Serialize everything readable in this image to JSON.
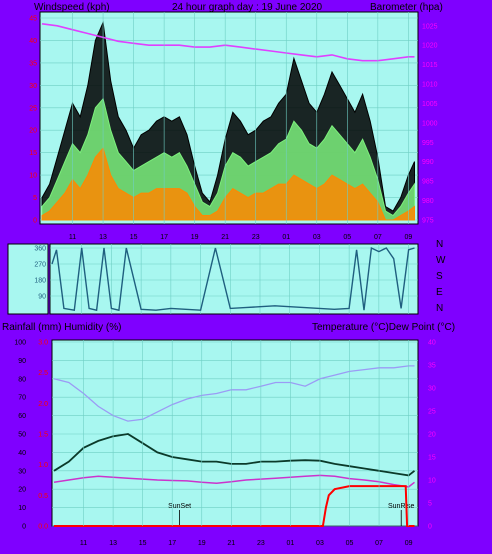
{
  "colors": {
    "background": "#7f00ff",
    "plot_bg": "#a8f7f0",
    "grid": "#6fcfc4",
    "wind_gust": "#000000",
    "wind_avg": "#7cf07c",
    "wind_low": "#ff8800",
    "barometer": "#e040ff",
    "direction": "#1f5f7f",
    "humidity": "#9b9bf5",
    "temperature": "#0b3a2a",
    "dew_point": "#cc33cc",
    "rainfall": "#ff0000",
    "left_ticks": "#ff0000",
    "right_ticks": "#ff00ff"
  },
  "header": {
    "left": "Windspeed (kph)",
    "center": "24 hour graph day : 19 June 2020",
    "right": "Barometer (hpa)"
  },
  "middle_header": {
    "left": "Rainfall (mm)  Humidity (%)",
    "right": "Temperature (°C)Dew Point (°C)"
  },
  "time_labels": [
    "11",
    "13",
    "15",
    "17",
    "19",
    "21",
    "23",
    "01",
    "03",
    "05",
    "07",
    "09"
  ],
  "direction_labels": [
    "N",
    "W",
    "S",
    "E",
    "N"
  ],
  "chart_data": [
    {
      "type": "line",
      "name": "wind-barometer",
      "left_axis_ticks": [
        "0",
        "5",
        "10",
        "15",
        "20",
        "25",
        "30",
        "35",
        "40",
        "45"
      ],
      "right_axis_ticks": [
        "975",
        "980",
        "985",
        "990",
        "995",
        "1000",
        "1005",
        "1010",
        "1015",
        "1020",
        "1025"
      ],
      "ylim_left": [
        0,
        45
      ],
      "ylim_right": [
        975,
        1027
      ],
      "x_hours_range": [
        9,
        33.5
      ],
      "series": [
        {
          "key": "gust",
          "x": [
            9,
            9.5,
            10,
            10.5,
            11,
            11.5,
            12,
            12.5,
            13,
            13.5,
            14,
            14.5,
            15,
            15.5,
            16,
            16.5,
            17,
            17.5,
            18,
            18.5,
            19,
            19.5,
            20,
            20.5,
            21,
            21.5,
            22,
            22.5,
            23,
            23.5,
            24,
            24.5,
            25,
            25.5,
            26,
            26.5,
            27,
            27.5,
            28,
            28.5,
            29,
            29.5,
            30,
            30.5,
            31,
            31.5,
            32,
            32.5,
            33,
            33.4
          ],
          "values": [
            5,
            8,
            14,
            20,
            26,
            23,
            30,
            40,
            44,
            31,
            23,
            20,
            16,
            19,
            20,
            22,
            23,
            22,
            23,
            19,
            12,
            6,
            4,
            10,
            18,
            24,
            22,
            19,
            20,
            22,
            23,
            26,
            28,
            36,
            31,
            26,
            24,
            28,
            33,
            30,
            27,
            24,
            28,
            22,
            14,
            3,
            2,
            5,
            10,
            13
          ]
        },
        {
          "key": "average",
          "x": [
            9,
            9.5,
            10,
            10.5,
            11,
            11.5,
            12,
            12.5,
            13,
            13.5,
            14,
            14.5,
            15,
            15.5,
            16,
            16.5,
            17,
            17.5,
            18,
            18.5,
            19,
            19.5,
            20,
            20.5,
            21,
            21.5,
            22,
            22.5,
            23,
            23.5,
            24,
            24.5,
            25,
            25.5,
            26,
            26.5,
            27,
            27.5,
            28,
            28.5,
            29,
            29.5,
            30,
            30.5,
            31,
            31.5,
            32,
            32.5,
            33,
            33.4
          ],
          "values": [
            3,
            5,
            9,
            13,
            17,
            15,
            19,
            25,
            27,
            20,
            15,
            13,
            11,
            12,
            13,
            14,
            15,
            14,
            15,
            12,
            8,
            4,
            3,
            6,
            12,
            15,
            14,
            12,
            13,
            14,
            15,
            17,
            18,
            22,
            20,
            17,
            16,
            18,
            21,
            19,
            17,
            15,
            18,
            14,
            9,
            2,
            1,
            3,
            6,
            8
          ]
        },
        {
          "key": "low",
          "x": [
            9,
            9.5,
            10,
            10.5,
            11,
            11.5,
            12,
            12.5,
            13,
            13.5,
            14,
            14.5,
            15,
            15.5,
            16,
            16.5,
            17,
            17.5,
            18,
            18.5,
            19,
            19.5,
            20,
            20.5,
            21,
            21.5,
            22,
            22.5,
            23,
            23.5,
            24,
            24.5,
            25,
            25.5,
            26,
            26.5,
            27,
            27.5,
            28,
            28.5,
            29,
            29.5,
            30,
            30.5,
            31,
            31.5,
            32,
            32.5,
            33,
            33.4
          ],
          "values": [
            1,
            2,
            4,
            6,
            9,
            7,
            10,
            14,
            16,
            10,
            7,
            6,
            5,
            6,
            6,
            7,
            7,
            7,
            7,
            6,
            3,
            1,
            1,
            2,
            5,
            7,
            6,
            5,
            6,
            6,
            7,
            8,
            8,
            10,
            9,
            8,
            7,
            8,
            10,
            9,
            8,
            7,
            8,
            6,
            4,
            0,
            0,
            1,
            2,
            3
          ]
        },
        {
          "key": "barometer",
          "axis": "right",
          "x": [
            9,
            10,
            11,
            12,
            13,
            14,
            15,
            16,
            17,
            18,
            19,
            20,
            21,
            22,
            23,
            24,
            25,
            26,
            27,
            28,
            29,
            30,
            31,
            32,
            33,
            33.4
          ],
          "values": [
            1025.5,
            1025,
            1024,
            1023,
            1022,
            1021,
            1020.5,
            1020,
            1020,
            1020,
            1019.5,
            1019.5,
            1020,
            1019.5,
            1019,
            1018.5,
            1018,
            1017.5,
            1017,
            1017.5,
            1016.5,
            1016,
            1016,
            1016.5,
            1017,
            1017
          ]
        }
      ]
    },
    {
      "type": "line",
      "name": "wind-direction",
      "ylim": [
        0,
        360
      ],
      "axis_ticks": [
        "360",
        "270",
        "180",
        "90"
      ],
      "x_hours_range": [
        9,
        33.5
      ],
      "series": [
        {
          "key": "direction",
          "x": [
            9,
            9.3,
            9.8,
            10.5,
            11,
            11.5,
            12,
            12.5,
            13,
            13.5,
            14,
            15,
            16,
            17,
            18,
            19,
            20,
            21,
            22,
            23,
            24,
            25,
            26,
            27,
            28,
            29,
            29.5,
            30,
            30.5,
            31,
            31.5,
            32,
            32.5,
            33,
            33.4
          ],
          "values": [
            270,
            350,
            20,
            10,
            360,
            20,
            10,
            360,
            20,
            10,
            360,
            15,
            10,
            20,
            15,
            10,
            360,
            20,
            25,
            30,
            35,
            30,
            25,
            20,
            15,
            20,
            350,
            10,
            360,
            340,
            360,
            300,
            20,
            350,
            360
          ]
        }
      ]
    },
    {
      "type": "line",
      "name": "temperature-humidity",
      "left_axis_ticks": [
        "0",
        "10",
        "20",
        "30",
        "40",
        "50",
        "60",
        "70",
        "80",
        "90",
        "100"
      ],
      "inner_left_axis_ticks": [
        "0.0",
        "0.5",
        "1.0",
        "1.5",
        "2.0",
        "2.5",
        "3.0"
      ],
      "right_axis_ticks": [
        "0",
        "5",
        "10",
        "15",
        "20",
        "25",
        "30",
        "35",
        "40"
      ],
      "ylim_left": [
        0,
        100
      ],
      "ylim_right": [
        0,
        40
      ],
      "x_hours_range": [
        9,
        33.5
      ],
      "annotations": [
        "SunSet",
        "SunRise"
      ],
      "series": [
        {
          "key": "humidity",
          "x": [
            9,
            10,
            11,
            12,
            13,
            14,
            15,
            16,
            17,
            18,
            19,
            20,
            21,
            22,
            23,
            24,
            25,
            26,
            27,
            28,
            29,
            30,
            31,
            32,
            33,
            33.4
          ],
          "values": [
            80,
            78,
            72,
            65,
            60,
            57,
            58,
            62,
            66,
            69,
            71,
            72,
            74,
            74,
            76,
            78,
            78,
            76,
            80,
            82,
            84,
            85,
            86,
            86,
            87,
            87
          ]
        },
        {
          "key": "temperature",
          "axis": "right",
          "x": [
            9,
            10,
            11,
            12,
            13,
            14,
            15,
            16,
            17,
            18,
            19,
            20,
            21,
            22,
            23,
            24,
            25,
            26,
            27,
            28,
            29,
            30,
            31,
            32,
            33,
            33.4
          ],
          "values": [
            12,
            14,
            17,
            18.5,
            19.5,
            20,
            18,
            16,
            15,
            14.5,
            14,
            14,
            13.5,
            13.5,
            14,
            14,
            14.2,
            14.3,
            14.2,
            13.5,
            13,
            12.5,
            12,
            11.5,
            11,
            12
          ]
        },
        {
          "key": "dew_point",
          "axis": "right",
          "x": [
            9,
            10,
            11,
            12,
            13,
            14,
            15,
            16,
            17,
            18,
            19,
            20,
            21,
            22,
            23,
            24,
            25,
            26,
            27,
            28,
            29,
            30,
            31,
            32,
            33,
            33.4
          ],
          "values": [
            9.5,
            10,
            10.5,
            10.8,
            10.6,
            10.4,
            10.2,
            10,
            9.9,
            9.8,
            9.5,
            9.3,
            9.6,
            10,
            10.2,
            10.4,
            10.6,
            10.8,
            11,
            10.8,
            10.3,
            10,
            9.6,
            9,
            8.5,
            9.5
          ]
        },
        {
          "key": "rainfall",
          "x": [
            9,
            26,
            27.2,
            27.4,
            27.6,
            28,
            29,
            30,
            31,
            32,
            32.8,
            32.9,
            33.4
          ],
          "values": [
            0,
            0,
            0,
            0.3,
            0.5,
            0.6,
            0.65,
            0.65,
            0.65,
            0.65,
            0.65,
            0,
            0
          ]
        }
      ]
    }
  ]
}
